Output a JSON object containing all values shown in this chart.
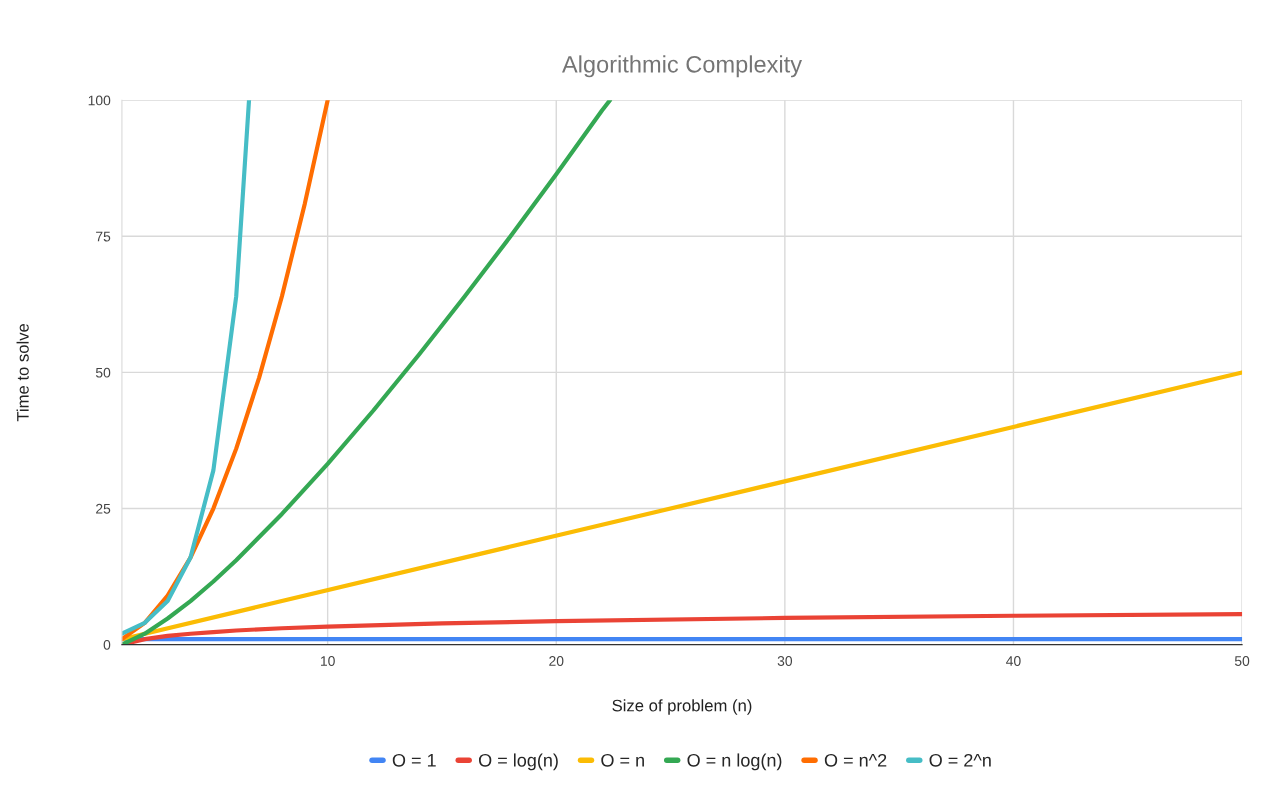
{
  "chart_data": {
    "type": "line",
    "title": "Algorithmic Complexity",
    "xlabel": "Size of problem (n)",
    "ylabel": "Time to solve",
    "xlim": [
      1,
      50
    ],
    "xticks": [
      10,
      20,
      30,
      40,
      50
    ],
    "ylim": [
      0,
      100
    ],
    "yticks": [
      0,
      25,
      50,
      75,
      100
    ],
    "grid": true,
    "legend": "bottom",
    "marker": "none",
    "line_style": "solid",
    "series": [
      {
        "name": "O = 1",
        "color": "#4285f4",
        "x": [
          1,
          50
        ],
        "values": [
          1,
          1
        ]
      },
      {
        "name": "O = log(n)",
        "color": "#ea4335",
        "x": [
          1,
          2,
          3,
          4,
          5,
          6,
          8,
          10,
          15,
          20,
          30,
          40,
          50
        ],
        "values": [
          0,
          1,
          1.6,
          2,
          2.3,
          2.6,
          3,
          3.3,
          3.9,
          4.3,
          4.9,
          5.3,
          5.6
        ]
      },
      {
        "name": "O = n",
        "color": "#fbbc04",
        "x": [
          1,
          50
        ],
        "values": [
          1,
          50
        ]
      },
      {
        "name": "O = n log(n)",
        "color": "#34a853",
        "x": [
          1,
          2,
          3,
          4,
          5,
          6,
          8,
          10,
          12,
          14,
          16,
          18,
          20,
          22,
          22.35
        ],
        "values": [
          0,
          2,
          4.8,
          8,
          11.6,
          15.5,
          24,
          33.2,
          43,
          53.3,
          64,
          75,
          86.4,
          98.1,
          100
        ]
      },
      {
        "name": "O = n^2",
        "color": "#ff6d01",
        "x": [
          1,
          2,
          3,
          4,
          5,
          6,
          7,
          8,
          9,
          10
        ],
        "values": [
          1,
          4,
          9,
          16,
          25,
          36,
          49,
          64,
          81,
          100
        ]
      },
      {
        "name": "O = 2^n",
        "color": "#46bdc6",
        "x": [
          1,
          2,
          3,
          4,
          5,
          6,
          6.56
        ],
        "values": [
          2,
          4,
          8,
          16,
          32,
          64,
          100
        ]
      }
    ]
  }
}
